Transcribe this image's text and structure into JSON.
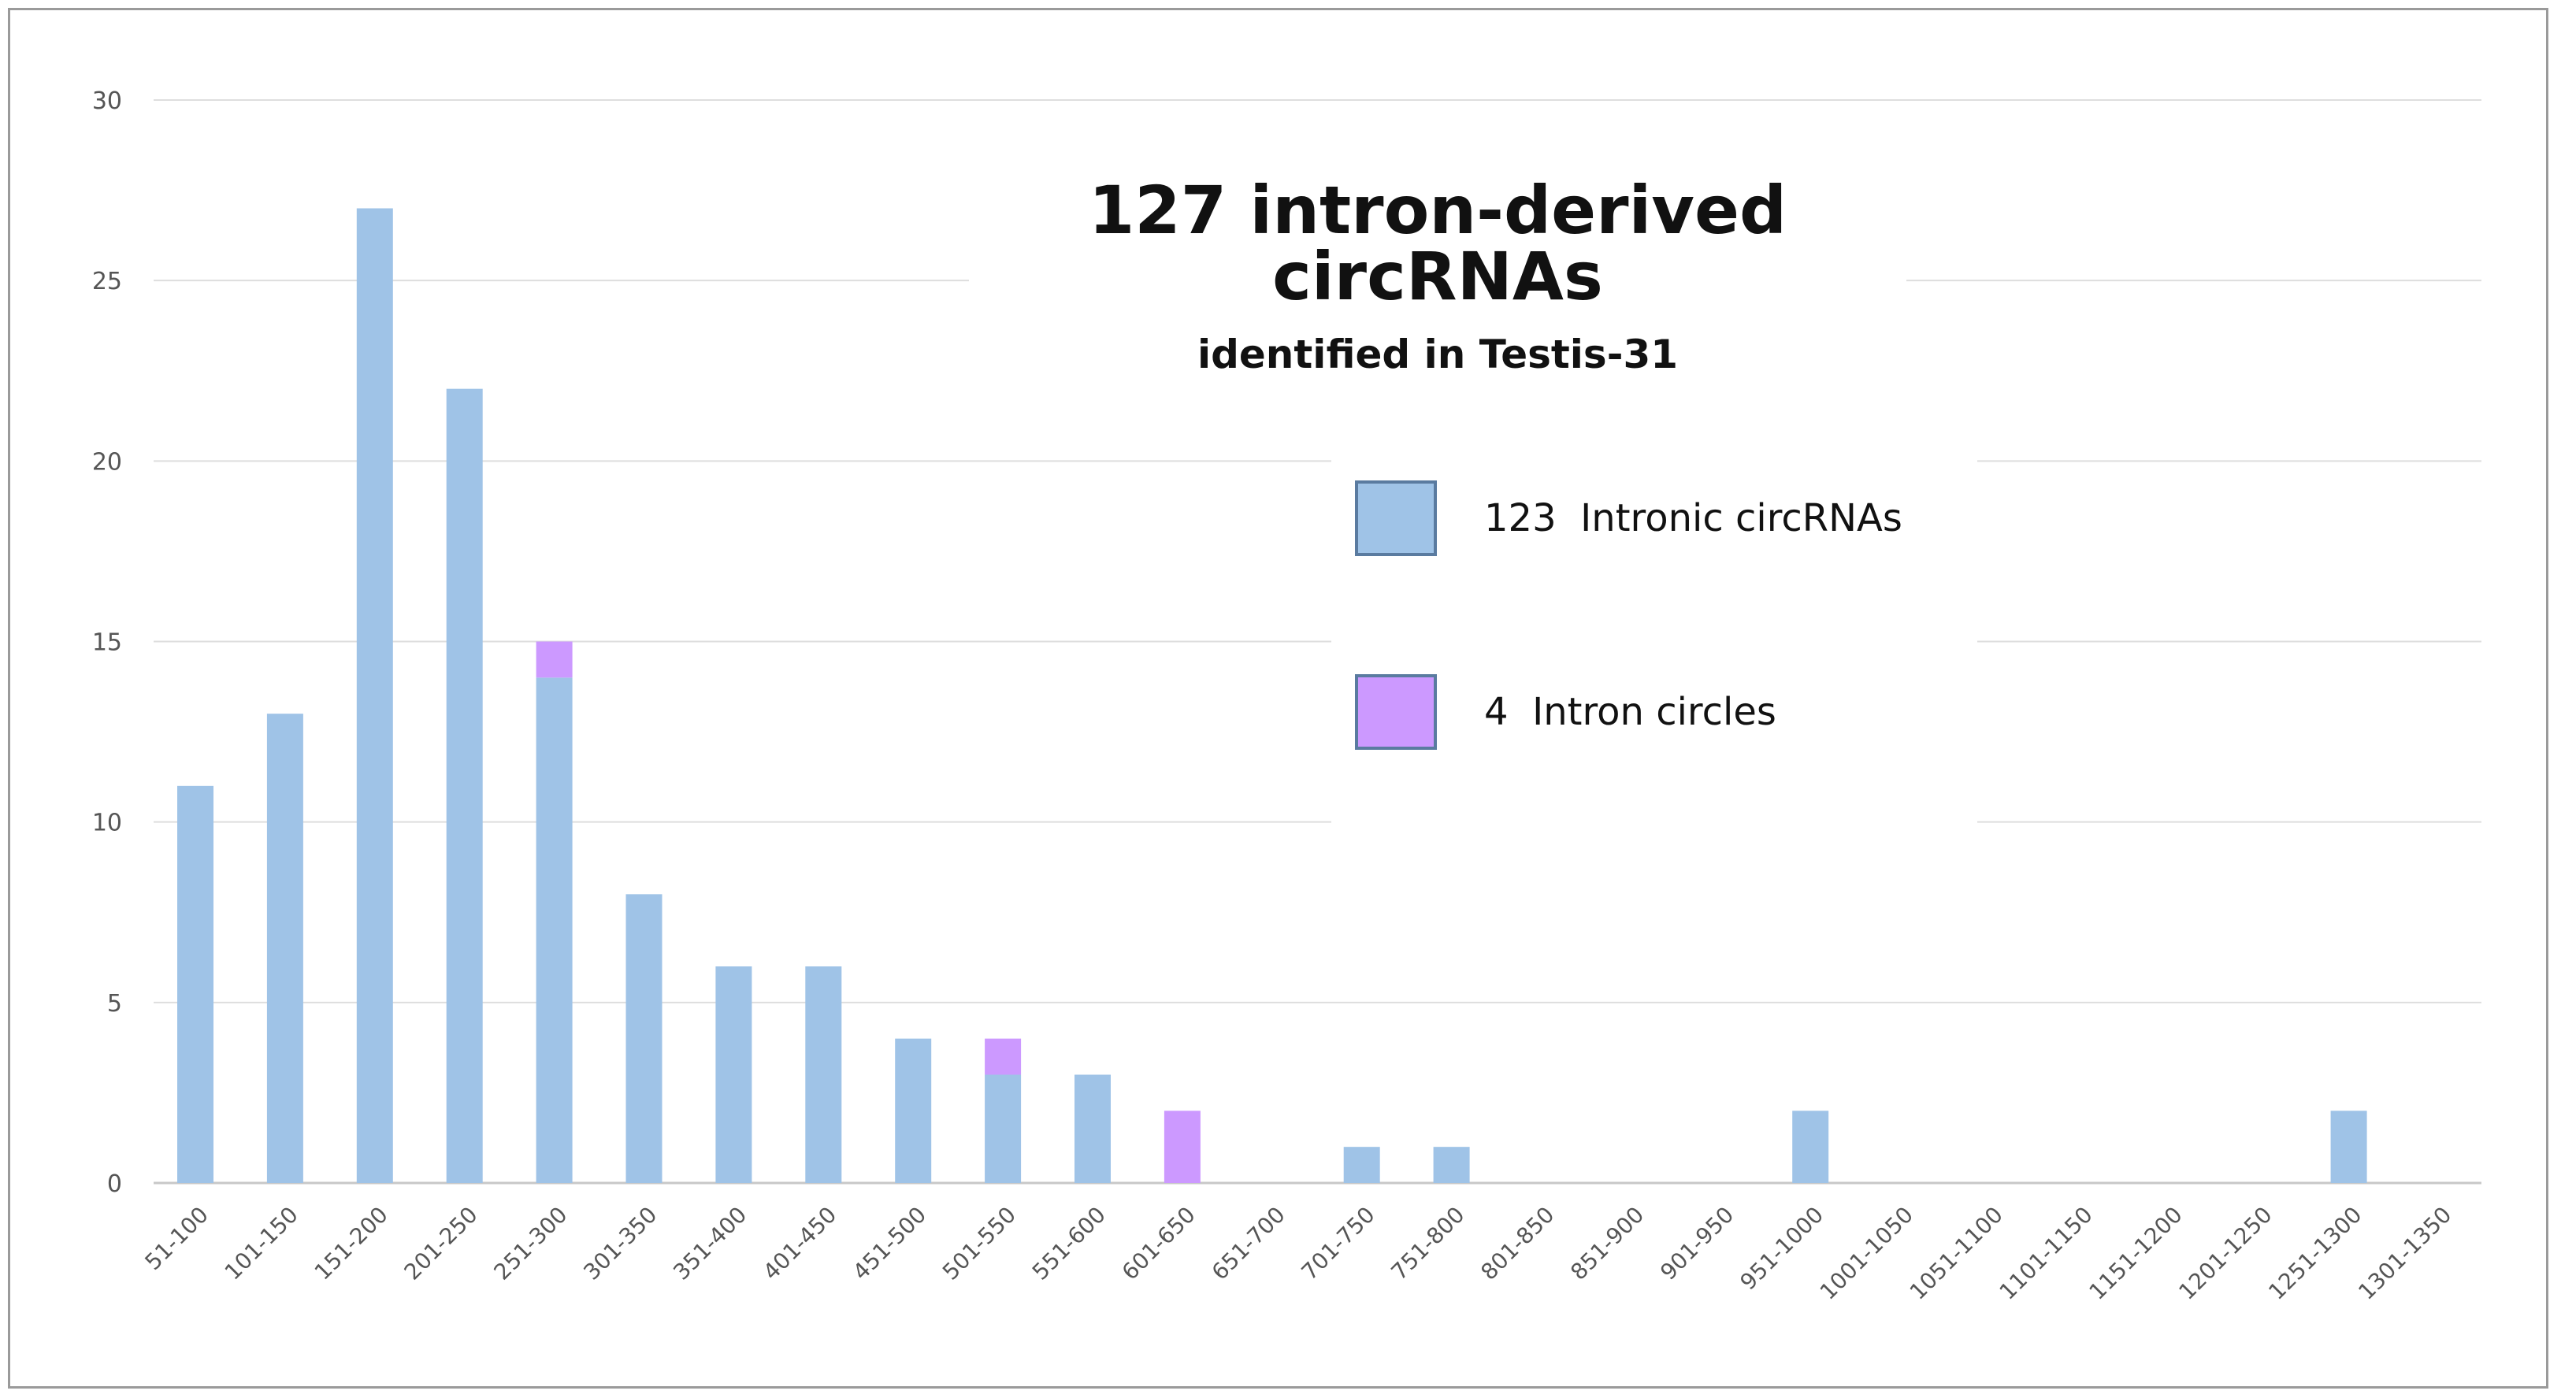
{
  "chart_data": {
    "type": "bar",
    "stacked": true,
    "title": "127 intron-derived circRNAs",
    "subtitle": "identified in Testis-31",
    "xlabel": "",
    "ylabel": "",
    "ylim": [
      0,
      30
    ],
    "yticks": [
      0,
      5,
      10,
      15,
      20,
      25,
      30
    ],
    "grid": true,
    "legend_position": "center-right",
    "categories": [
      "51-100",
      "101-150",
      "151-200",
      "201-250",
      "251-300",
      "301-350",
      "351-400",
      "401-450",
      "451-500",
      "501-550",
      "551-600",
      "601-650",
      "651-700",
      "701-750",
      "751-800",
      "801-850",
      "851-900",
      "901-950",
      "951-1000",
      "1001-1050",
      "1051-1100",
      "1101-1150",
      "1151-1200",
      "1201-1250",
      "1251-1300",
      "1301-1350"
    ],
    "series": [
      {
        "name": "123 Intronic circRNAs",
        "color": "#9fc3e7",
        "values": [
          11,
          13,
          27,
          22,
          14,
          8,
          6,
          6,
          4,
          3,
          3,
          0,
          0,
          1,
          1,
          0,
          0,
          0,
          2,
          0,
          0,
          0,
          0,
          0,
          2,
          0
        ]
      },
      {
        "name": "4 Intron circles",
        "color": "#cc99ff",
        "values": [
          0,
          0,
          0,
          0,
          1,
          0,
          0,
          0,
          0,
          1,
          0,
          2,
          0,
          0,
          0,
          0,
          0,
          0,
          0,
          0,
          0,
          0,
          0,
          0,
          0,
          0
        ]
      }
    ]
  },
  "legend": {
    "items": [
      {
        "count": "123",
        "label": "Intronic circRNAs"
      },
      {
        "count": "4",
        "label": "Intron circles"
      }
    ]
  }
}
